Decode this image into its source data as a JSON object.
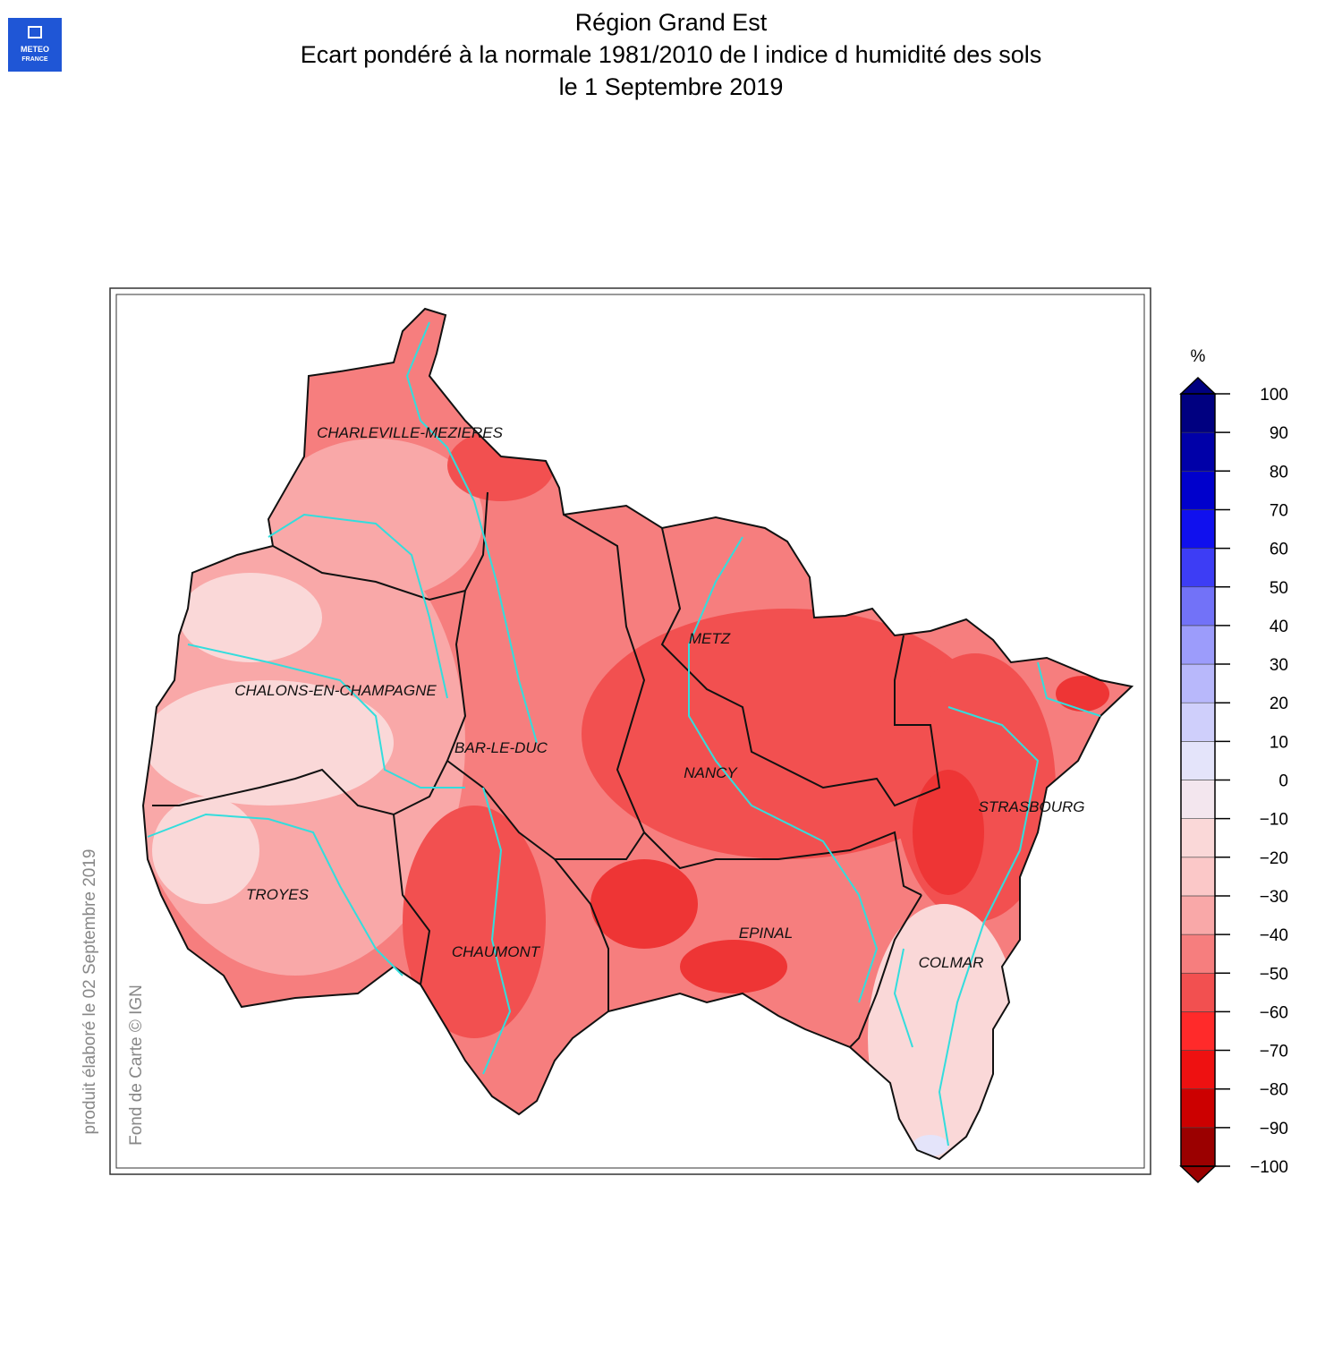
{
  "logo": {
    "line1": "METEO",
    "line2": "FRANCE"
  },
  "title": [
    "Région Grand Est",
    "Ecart pondéré à la normale 1981/2010 de l indice d humidité des sols",
    "le 1 Septembre 2019"
  ],
  "map": {
    "cities": [
      "CHARLEVILLE-MEZIERES",
      "CHALONS-EN-CHAMPAGNE",
      "METZ",
      "BAR-LE-DUC",
      "NANCY",
      "STRASBOURG",
      "TROYES",
      "CHAUMONT",
      "EPINAL",
      "COLMAR"
    ],
    "colorbar": {
      "unit": "%",
      "ticks": [
        {
          "value": -100,
          "label": "−100"
        },
        {
          "value": -90,
          "label": "−90"
        },
        {
          "value": -80,
          "label": "−80"
        },
        {
          "value": -70,
          "label": "−70"
        },
        {
          "value": -60,
          "label": "−60"
        },
        {
          "value": -50,
          "label": "−50"
        },
        {
          "value": -40,
          "label": "−40"
        },
        {
          "value": -30,
          "label": "−30"
        },
        {
          "value": -20,
          "label": "−20"
        },
        {
          "value": -10,
          "label": "−10"
        },
        0,
        10,
        20,
        30,
        40,
        50,
        60,
        70,
        80,
        90,
        100
      ],
      "colors": [
        "#9b0000",
        "#cc0000",
        "#ee1111",
        "#ff2a2a",
        "#f25050",
        "#f67e7e",
        "#f9a8a8",
        "#fbc8c8",
        "#fad8d8",
        "#f3e6ee",
        "#e4e4fa",
        "#cfcffb",
        "#b8b8fb",
        "#9c9cfb",
        "#7272f8",
        "#3d3df5",
        "#1010ee",
        "#0000cc",
        "#0000a8",
        "#000080"
      ]
    }
  },
  "credits": {
    "produced": "produit élaboré le 02 Septembre 2019",
    "basemap": "Fond de Carte © IGN"
  }
}
